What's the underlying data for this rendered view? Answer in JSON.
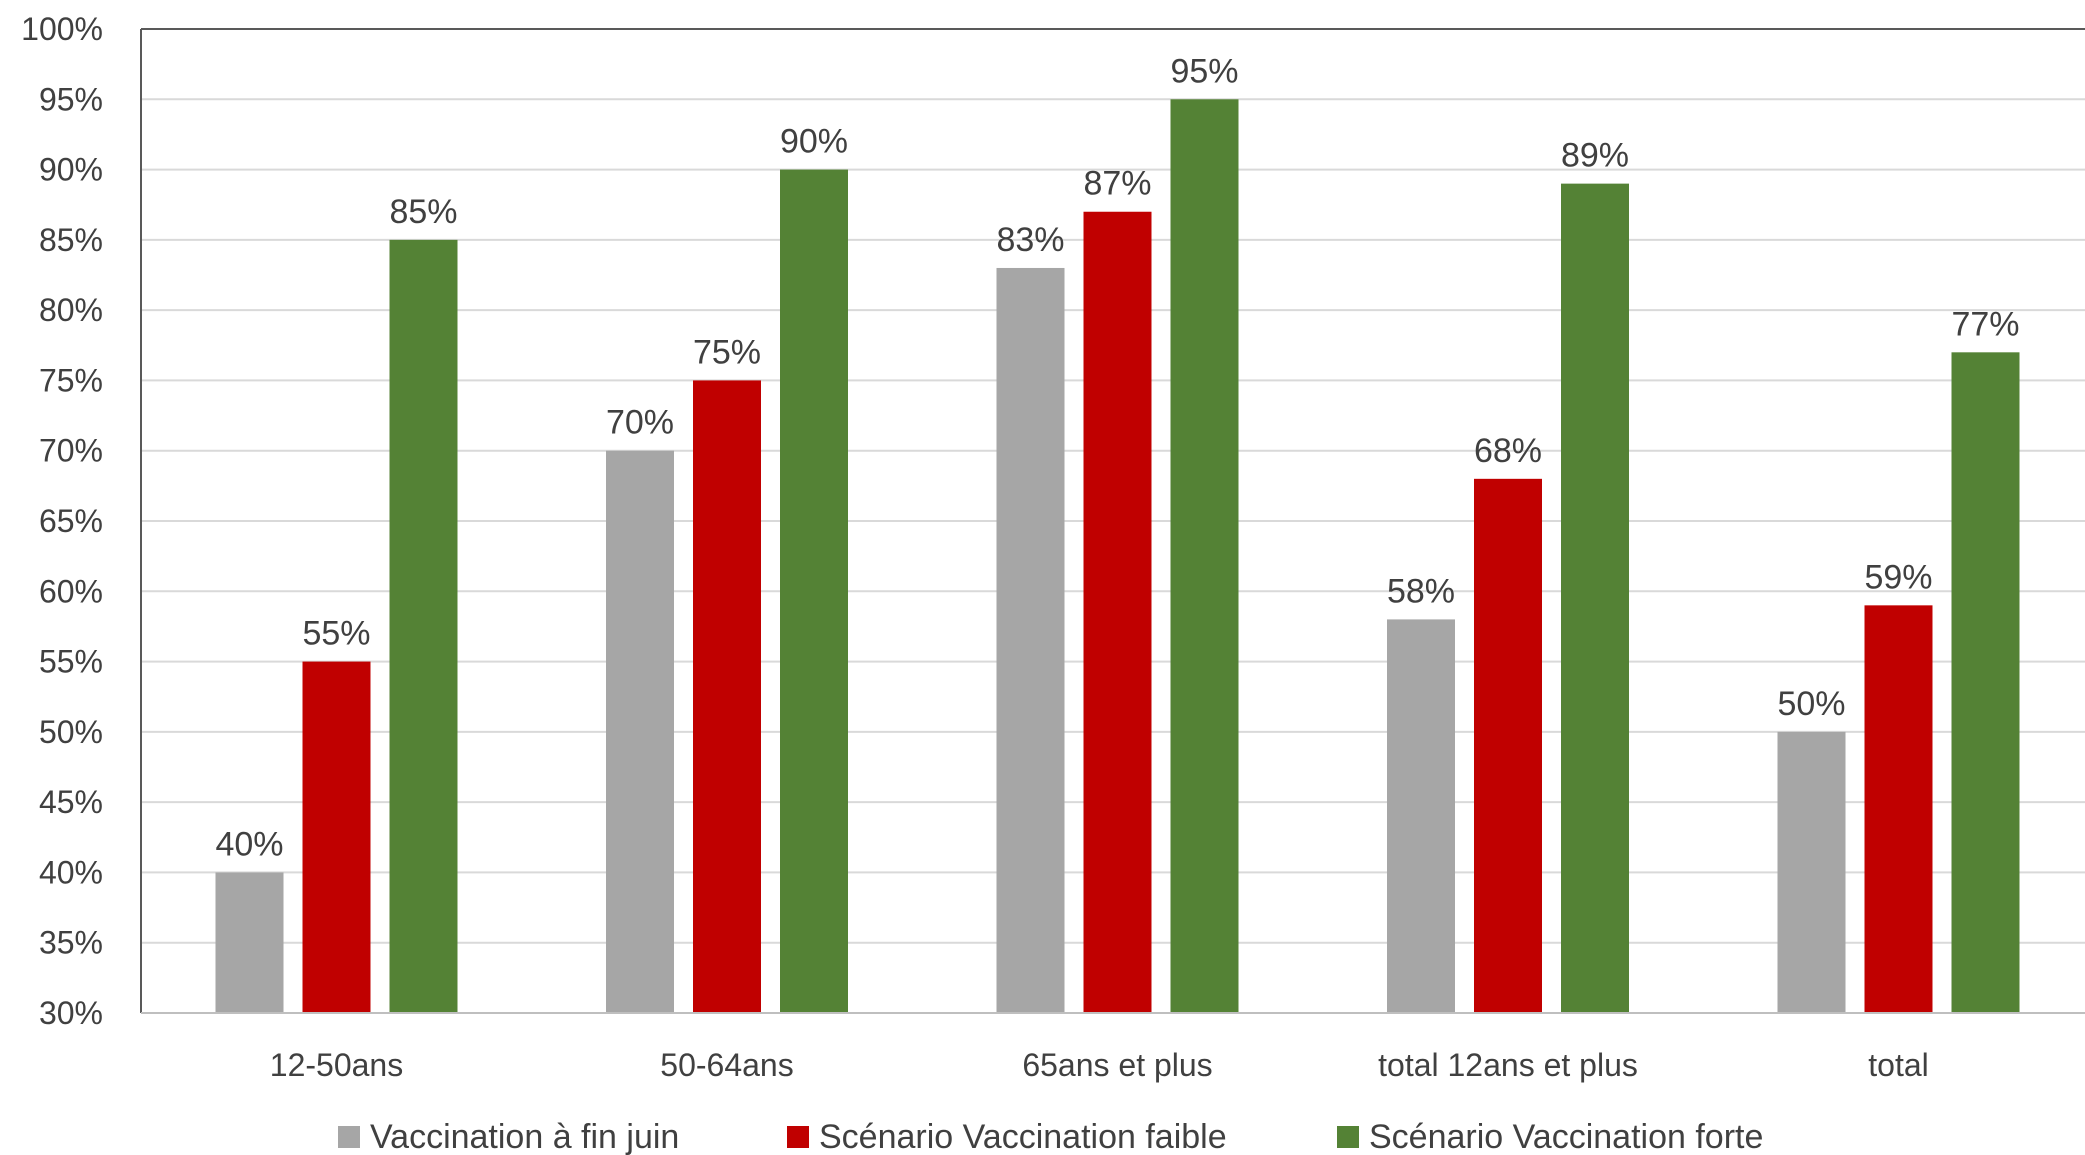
{
  "chart_data": {
    "type": "bar",
    "categories": [
      "12-50ans",
      "50-64ans",
      "65ans et plus",
      "total 12ans et plus",
      "total"
    ],
    "series": [
      {
        "name": "Vaccination à fin juin",
        "values": [
          40,
          70,
          83,
          58,
          50
        ],
        "labels": [
          "40%",
          "70%",
          "83%",
          "58%",
          "50%"
        ],
        "color": "#A6A6A6"
      },
      {
        "name": "Scénario Vaccination faible",
        "values": [
          55,
          75,
          87,
          68,
          59
        ],
        "labels": [
          "55%",
          "75%",
          "87%",
          "68%",
          "59%"
        ],
        "color": "#C00000"
      },
      {
        "name": "Scénario Vaccination forte",
        "values": [
          85,
          90,
          95,
          89,
          77
        ],
        "labels": [
          "85%",
          "90%",
          "95%",
          "89%",
          "77%"
        ],
        "color": "#548235"
      }
    ],
    "y_ticks": [
      30,
      35,
      40,
      45,
      50,
      55,
      60,
      65,
      70,
      75,
      80,
      85,
      90,
      95,
      100
    ],
    "y_tick_labels": [
      "30%",
      "35%",
      "40%",
      "45%",
      "50%",
      "55%",
      "60%",
      "65%",
      "70%",
      "75%",
      "80%",
      "85%",
      "90%",
      "95%",
      "100%"
    ],
    "ylim": [
      30,
      100
    ],
    "grid": true,
    "legend_position": "bottom",
    "title": "",
    "xlabel": "",
    "ylabel": ""
  }
}
